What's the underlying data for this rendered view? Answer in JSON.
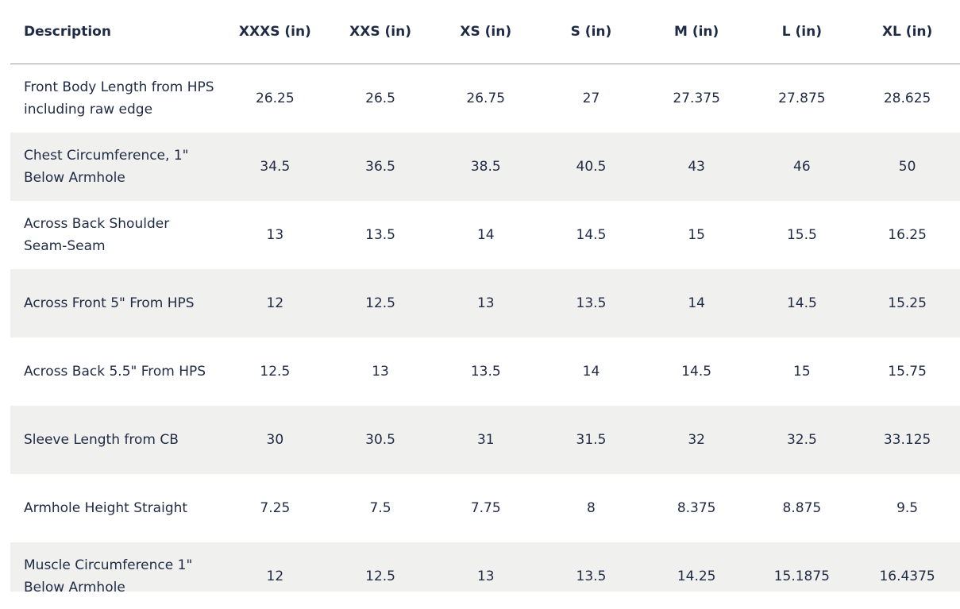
{
  "table": {
    "header": [
      "Description",
      "XXXS (in)",
      "XXS (in)",
      "XS (in)",
      "S (in)",
      "M (in)",
      "L (in)",
      "XL (in)"
    ],
    "rows": [
      [
        "Front Body Length from HPS including raw edge",
        "26.25",
        "26.5",
        "26.75",
        "27",
        "27.375",
        "27.875",
        "28.625"
      ],
      [
        "Chest Circumference, 1\" Below Armhole",
        "34.5",
        "36.5",
        "38.5",
        "40.5",
        "43",
        "46",
        "50"
      ],
      [
        "Across Back Shoulder Seam-Seam",
        "13",
        "13.5",
        "14",
        "14.5",
        "15",
        "15.5",
        "16.25"
      ],
      [
        "Across Front 5\" From HPS",
        "12",
        "12.5",
        "13",
        "13.5",
        "14",
        "14.5",
        "15.25"
      ],
      [
        "Across Back 5.5\" From HPS",
        "12.5",
        "13",
        "13.5",
        "14",
        "14.5",
        "15",
        "15.75"
      ],
      [
        "Sleeve Length from CB",
        "30",
        "30.5",
        "31",
        "31.5",
        "32",
        "32.5",
        "33.125"
      ],
      [
        "Armhole Height Straight",
        "7.25",
        "7.5",
        "7.75",
        "8",
        "8.375",
        "8.875",
        "9.5"
      ],
      [
        "Muscle Circumference 1\" Below Armhole",
        "12",
        "12.5",
        "13",
        "13.5",
        "14.25",
        "15.1875",
        "16.4375"
      ]
    ]
  }
}
